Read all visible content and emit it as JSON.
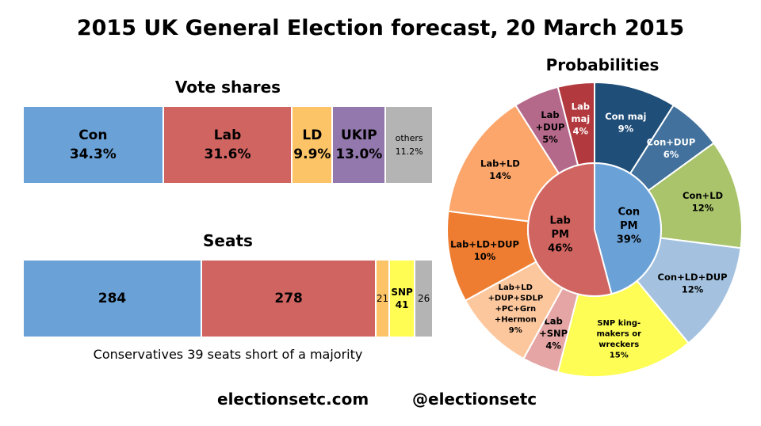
{
  "title": "2015 UK General Election forecast, 20 March 2015",
  "vote_title": "Vote shares",
  "seats_title": "Seats",
  "prob_title": "Probabilities",
  "note": "Conservatives 39 seats short of a majority",
  "footer": {
    "site": "electionsetc.com",
    "handle": "@electionsetc"
  },
  "colors": {
    "con": "#6aa2d8",
    "lab": "#d06461",
    "ld": "#fcc466",
    "ukip": "#9278ad",
    "others": "#b4b4b4",
    "snp": "#fffd54"
  },
  "chart_data": [
    {
      "type": "bar",
      "orientation": "horizontal-stacked",
      "title": "Vote shares",
      "segments": [
        {
          "label": "Con",
          "value": 34.3,
          "display": "34.3%",
          "color": "#6aa2d8"
        },
        {
          "label": "Lab",
          "value": 31.6,
          "display": "31.6%",
          "color": "#d06461"
        },
        {
          "label": "LD",
          "value": 9.9,
          "display": "9.9%",
          "color": "#fcc466"
        },
        {
          "label": "UKIP",
          "value": 13.0,
          "display": "13.0%",
          "color": "#9278ad"
        },
        {
          "label": "others",
          "value": 11.2,
          "display": "11.2%",
          "color": "#b4b4b4"
        }
      ]
    },
    {
      "type": "bar",
      "orientation": "horizontal-stacked",
      "title": "Seats",
      "segments": [
        {
          "label": "",
          "value": 284,
          "display": "284",
          "color": "#6aa2d8"
        },
        {
          "label": "",
          "value": 278,
          "display": "278",
          "color": "#d06461"
        },
        {
          "label": "",
          "value": 21,
          "display": "21",
          "color": "#fcc466"
        },
        {
          "label": "SNP",
          "value": 41,
          "display": "41",
          "color": "#fffd54"
        },
        {
          "label": "",
          "value": 26,
          "display": "26",
          "color": "#b4b4b4"
        }
      ]
    },
    {
      "type": "pie",
      "title": "Probabilities",
      "inner": [
        {
          "label": "Con PM",
          "lines": [
            "Con",
            "PM",
            "39%"
          ],
          "value": 39,
          "color": "#6aa2d8"
        },
        {
          "label": "Lab PM",
          "lines": [
            "Lab",
            "PM",
            "46%"
          ],
          "value": 46,
          "color": "#d06461"
        }
      ],
      "outer": [
        {
          "label": "Con maj",
          "lines": [
            "Con maj",
            "9%"
          ],
          "value": 9,
          "color": "#1f4e79",
          "text_color": "#ffffff"
        },
        {
          "label": "Con+DUP",
          "lines": [
            "Con+DUP",
            "6%"
          ],
          "value": 6,
          "color": "#41719c",
          "text_color": "#ffffff"
        },
        {
          "label": "Con+LD",
          "lines": [
            "Con+LD",
            "12%"
          ],
          "value": 12,
          "color": "#a9c46b",
          "text_color": "#000000"
        },
        {
          "label": "Con+LD+DUP",
          "lines": [
            "Con+LD+DUP",
            "12%"
          ],
          "value": 12,
          "color": "#a4c2df",
          "text_color": "#000000"
        },
        {
          "label": "SNP king-makers or wreckers",
          "lines": [
            "SNP king-",
            "makers or",
            "wreckers",
            "15%"
          ],
          "value": 15,
          "color": "#fdfd55",
          "text_color": "#000000"
        },
        {
          "label": "Lab+SNP",
          "lines": [
            "Lab",
            "+SNP",
            "4%"
          ],
          "value": 4,
          "color": "#e4a5a4",
          "text_color": "#000000"
        },
        {
          "label": "Lab+LD+DUP+SDLP+PC+Grn+Hermon",
          "lines": [
            "Lab+LD",
            "+DUP+SDLP",
            "+PC+Grn",
            "+Hermon",
            "9%"
          ],
          "value": 9,
          "color": "#fdc79e",
          "text_color": "#000000"
        },
        {
          "label": "Lab+LD+DUP",
          "lines": [
            "Lab+LD+DUP",
            "10%"
          ],
          "value": 10,
          "color": "#ee7d31",
          "text_color": "#000000"
        },
        {
          "label": "Lab+LD",
          "lines": [
            "Lab+LD",
            "14%"
          ],
          "value": 14,
          "color": "#fda66c",
          "text_color": "#000000"
        },
        {
          "label": "Lab+DUP",
          "lines": [
            "Lab",
            "+DUP",
            "5%"
          ],
          "value": 5,
          "color": "#b5698a",
          "text_color": "#000000"
        },
        {
          "label": "Lab maj",
          "lines": [
            "Lab",
            "maj",
            "4%"
          ],
          "value": 4,
          "color": "#b23a3e",
          "text_color": "#ffffff"
        }
      ]
    }
  ]
}
